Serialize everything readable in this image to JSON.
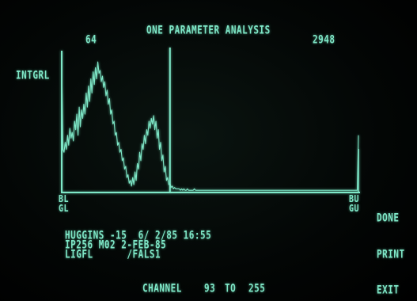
{
  "title": "ONE PARAMETER ANALYSIS",
  "cursor_left_value": "64",
  "cursor_right_value": "2948",
  "mode_label": "INTGRL",
  "axis_labels": {
    "left_top": "BL",
    "left_bottom": "GL",
    "right_top": "BU",
    "right_bottom": "GU"
  },
  "info_lines": [
    "HUGGINS -15  6/ 2/85 16:55",
    "IP256 M02 2-FEB-85",
    "LIGFL      /FALS1"
  ],
  "channel_label": "CHANNEL",
  "channel_from": "93",
  "channel_to_word": "TO",
  "channel_to": "255",
  "menu": {
    "done": "DONE",
    "print": "PRINT",
    "exit": "EXIT"
  },
  "colors": {
    "phosphor": "#7fe8c8",
    "background": "#000000"
  },
  "chart_data": {
    "type": "line",
    "x_range": [
      0,
      255
    ],
    "cursor_channel": 93,
    "values": [
      95,
      30,
      28,
      35,
      30,
      40,
      33,
      45,
      38,
      42,
      36,
      50,
      44,
      55,
      40,
      60,
      46,
      58,
      52,
      62,
      55,
      70,
      60,
      75,
      64,
      80,
      70,
      85,
      76,
      88,
      80,
      92,
      84,
      86,
      78,
      82,
      74,
      78,
      68,
      72,
      62,
      66,
      55,
      58,
      48,
      50,
      40,
      42,
      33,
      35,
      28,
      30,
      22,
      24,
      16,
      18,
      10,
      12,
      6,
      8,
      4,
      10,
      5,
      14,
      8,
      20,
      16,
      28,
      22,
      34,
      30,
      40,
      34,
      44,
      40,
      50,
      45,
      52,
      48,
      54,
      44,
      50,
      38,
      44,
      30,
      35,
      22,
      26,
      14,
      18,
      8,
      10,
      5,
      6,
      3,
      4,
      2,
      3,
      2,
      2,
      2,
      2,
      1,
      2,
      1,
      2,
      1,
      1,
      2,
      1,
      1,
      1,
      1,
      1,
      2,
      1,
      1,
      1,
      1,
      1,
      1,
      1,
      1,
      1,
      1,
      1,
      1,
      1,
      1,
      1,
      1,
      1,
      1,
      1,
      1,
      1,
      1,
      1,
      1,
      1,
      1,
      1,
      1,
      1,
      1,
      1,
      1,
      1,
      1,
      1,
      1,
      1,
      1,
      1,
      1,
      1,
      1,
      1,
      1,
      1,
      1,
      1,
      1,
      1,
      1,
      1,
      1,
      1,
      1,
      1,
      1,
      1,
      1,
      1,
      1,
      1,
      1,
      1,
      1,
      1,
      1,
      1,
      1,
      1,
      1,
      1,
      1,
      1,
      1,
      1,
      1,
      1,
      1,
      1,
      1,
      1,
      1,
      1,
      1,
      1,
      1,
      1,
      1,
      1,
      1,
      1,
      1,
      1,
      1,
      1,
      1,
      1,
      1,
      1,
      1,
      1,
      1,
      1,
      1,
      1,
      1,
      1,
      1,
      1,
      1,
      1,
      1,
      1,
      1,
      1,
      1,
      1,
      1,
      1,
      1,
      1,
      1,
      1,
      1,
      1,
      1,
      1,
      1,
      1,
      1,
      1,
      1,
      1,
      1,
      1,
      1,
      1,
      1,
      1,
      1,
      40
    ]
  }
}
